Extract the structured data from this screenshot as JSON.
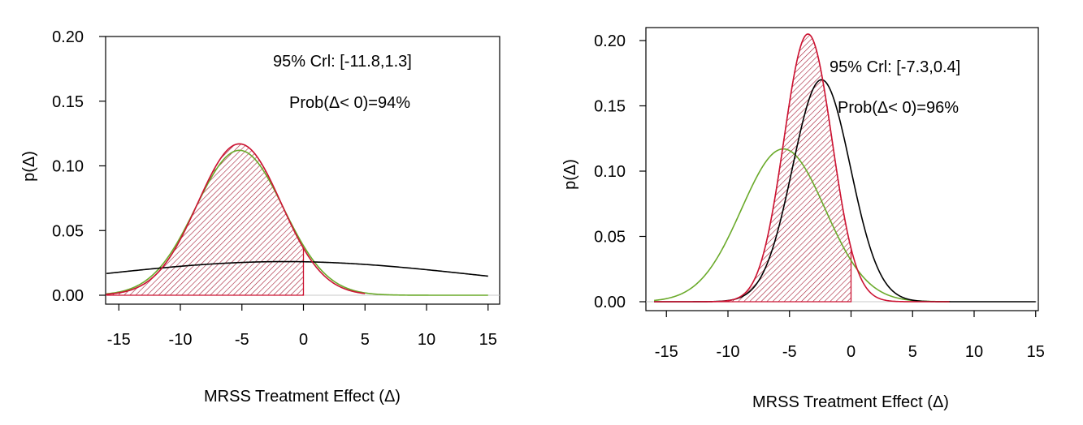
{
  "chart_data": [
    {
      "type": "line",
      "xlabel": "MRSS Treatment Effect (Δ)",
      "ylabel": "p(Δ)",
      "xlim": [
        -16,
        16
      ],
      "ylim": [
        0,
        0.205
      ],
      "xticks": [
        -15,
        -10,
        -5,
        0,
        5,
        10,
        15
      ],
      "yticks": [
        0.0,
        0.05,
        0.1,
        0.15,
        0.2
      ],
      "ytick_labels": [
        "0.00",
        "0.05",
        "0.10",
        "0.15",
        "0.20"
      ],
      "annotations": [
        "95% Crl: [-11.8,1.3]",
        "Prob(Δ< 0)=94%"
      ],
      "shaded_region": {
        "series": "red",
        "from": -16,
        "to": 0
      },
      "series": [
        {
          "color": "#000000",
          "mean": -1.5,
          "sd": 15.5,
          "peak": 0.026,
          "x_range": [
            -16,
            15
          ]
        },
        {
          "color": "#cc1433",
          "mean": -5.2,
          "sd": 3.4,
          "peak": 0.117,
          "x_range": [
            -16,
            5
          ]
        },
        {
          "color": "#6aaa2a",
          "mean": -5.2,
          "sd": 3.55,
          "peak": 0.112,
          "x_range": [
            -16,
            15
          ]
        }
      ]
    },
    {
      "type": "line",
      "xlabel": "MRSS Treatment Effect (Δ)",
      "ylabel": "p(Δ)",
      "xlim": [
        -16,
        16
      ],
      "ylim": [
        0,
        0.205
      ],
      "xticks": [
        -15,
        -10,
        -5,
        0,
        5,
        10,
        15
      ],
      "yticks": [
        0.0,
        0.05,
        0.1,
        0.15,
        0.2
      ],
      "ytick_labels": [
        "0.00",
        "0.05",
        "0.10",
        "0.15",
        "0.20"
      ],
      "annotations": [
        "95% Crl: [-7.3,0.4]",
        "Prob(Δ< 0)=96%"
      ],
      "shaded_region": {
        "series": "red",
        "from": -16,
        "to": 0
      },
      "series": [
        {
          "color": "#000000",
          "mean": -2.4,
          "sd": 2.35,
          "peak": 0.17,
          "x_range": [
            -16,
            15
          ]
        },
        {
          "color": "#cc1433",
          "mean": -3.5,
          "sd": 1.95,
          "peak": 0.205,
          "x_range": [
            -16,
            8
          ]
        },
        {
          "color": "#6aaa2a",
          "mean": -5.5,
          "sd": 3.4,
          "peak": 0.117,
          "x_range": [
            -16,
            8
          ]
        }
      ]
    }
  ]
}
